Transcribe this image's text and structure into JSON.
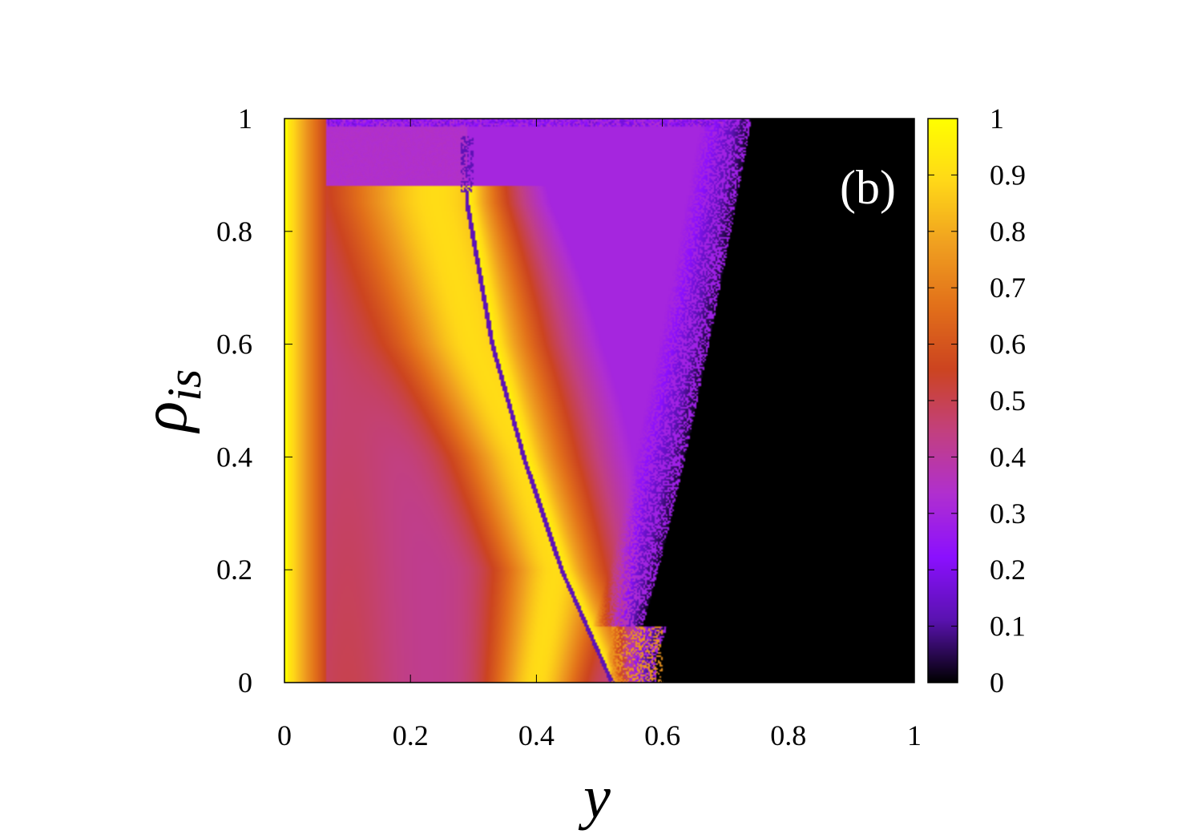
{
  "chart_data": {
    "type": "heatmap",
    "panel_label": "(b)",
    "xlabel": "y",
    "ylabel_base": "ρ",
    "ylabel_sub": "is",
    "xlim": [
      0,
      1
    ],
    "ylim": [
      0,
      1
    ],
    "x_ticks": [
      0,
      0.2,
      0.4,
      0.6,
      0.8,
      1
    ],
    "x_tick_labels": [
      "0",
      "0.2",
      "0.4",
      "0.6",
      "0.8",
      "1"
    ],
    "y_ticks": [
      0,
      0.2,
      0.4,
      0.6,
      0.8,
      1
    ],
    "y_tick_labels": [
      "0",
      "0.2",
      "0.4",
      "0.6",
      "0.8",
      "1"
    ],
    "colorbar": {
      "range": [
        0,
        1
      ],
      "ticks": [
        0,
        0.1,
        0.2,
        0.3,
        0.4,
        0.5,
        0.6,
        0.7,
        0.8,
        0.9,
        1
      ],
      "tick_labels": [
        "0",
        "0.1",
        "0.2",
        "0.3",
        "0.4",
        "0.5",
        "0.6",
        "0.7",
        "0.8",
        "0.9",
        "1"
      ],
      "colormap": "gnuplot-pm3d (black-purple-red-yellow)",
      "colors": [
        "#000000",
        "#5a12b0",
        "#8b10ff",
        "#b02fd0",
        "#c24080",
        "#cc4420",
        "#e2701a",
        "#f0a020",
        "#ffd818",
        "#ffff00"
      ]
    },
    "features": {
      "dark_boundary_curve": [
        [
          0.29,
          0.85
        ],
        [
          0.33,
          0.6
        ],
        [
          0.38,
          0.4
        ],
        [
          0.44,
          0.2
        ],
        [
          0.52,
          0.0
        ]
      ],
      "bright_band_ridge": [
        [
          0.24,
          0.85
        ],
        [
          0.3,
          0.6
        ],
        [
          0.38,
          0.4
        ],
        [
          0.43,
          0.2
        ],
        [
          0.4,
          0.0
        ]
      ],
      "black_region_start_x_at_top": 0.7,
      "black_region_start_x_at_bottom": 0.52
    }
  }
}
